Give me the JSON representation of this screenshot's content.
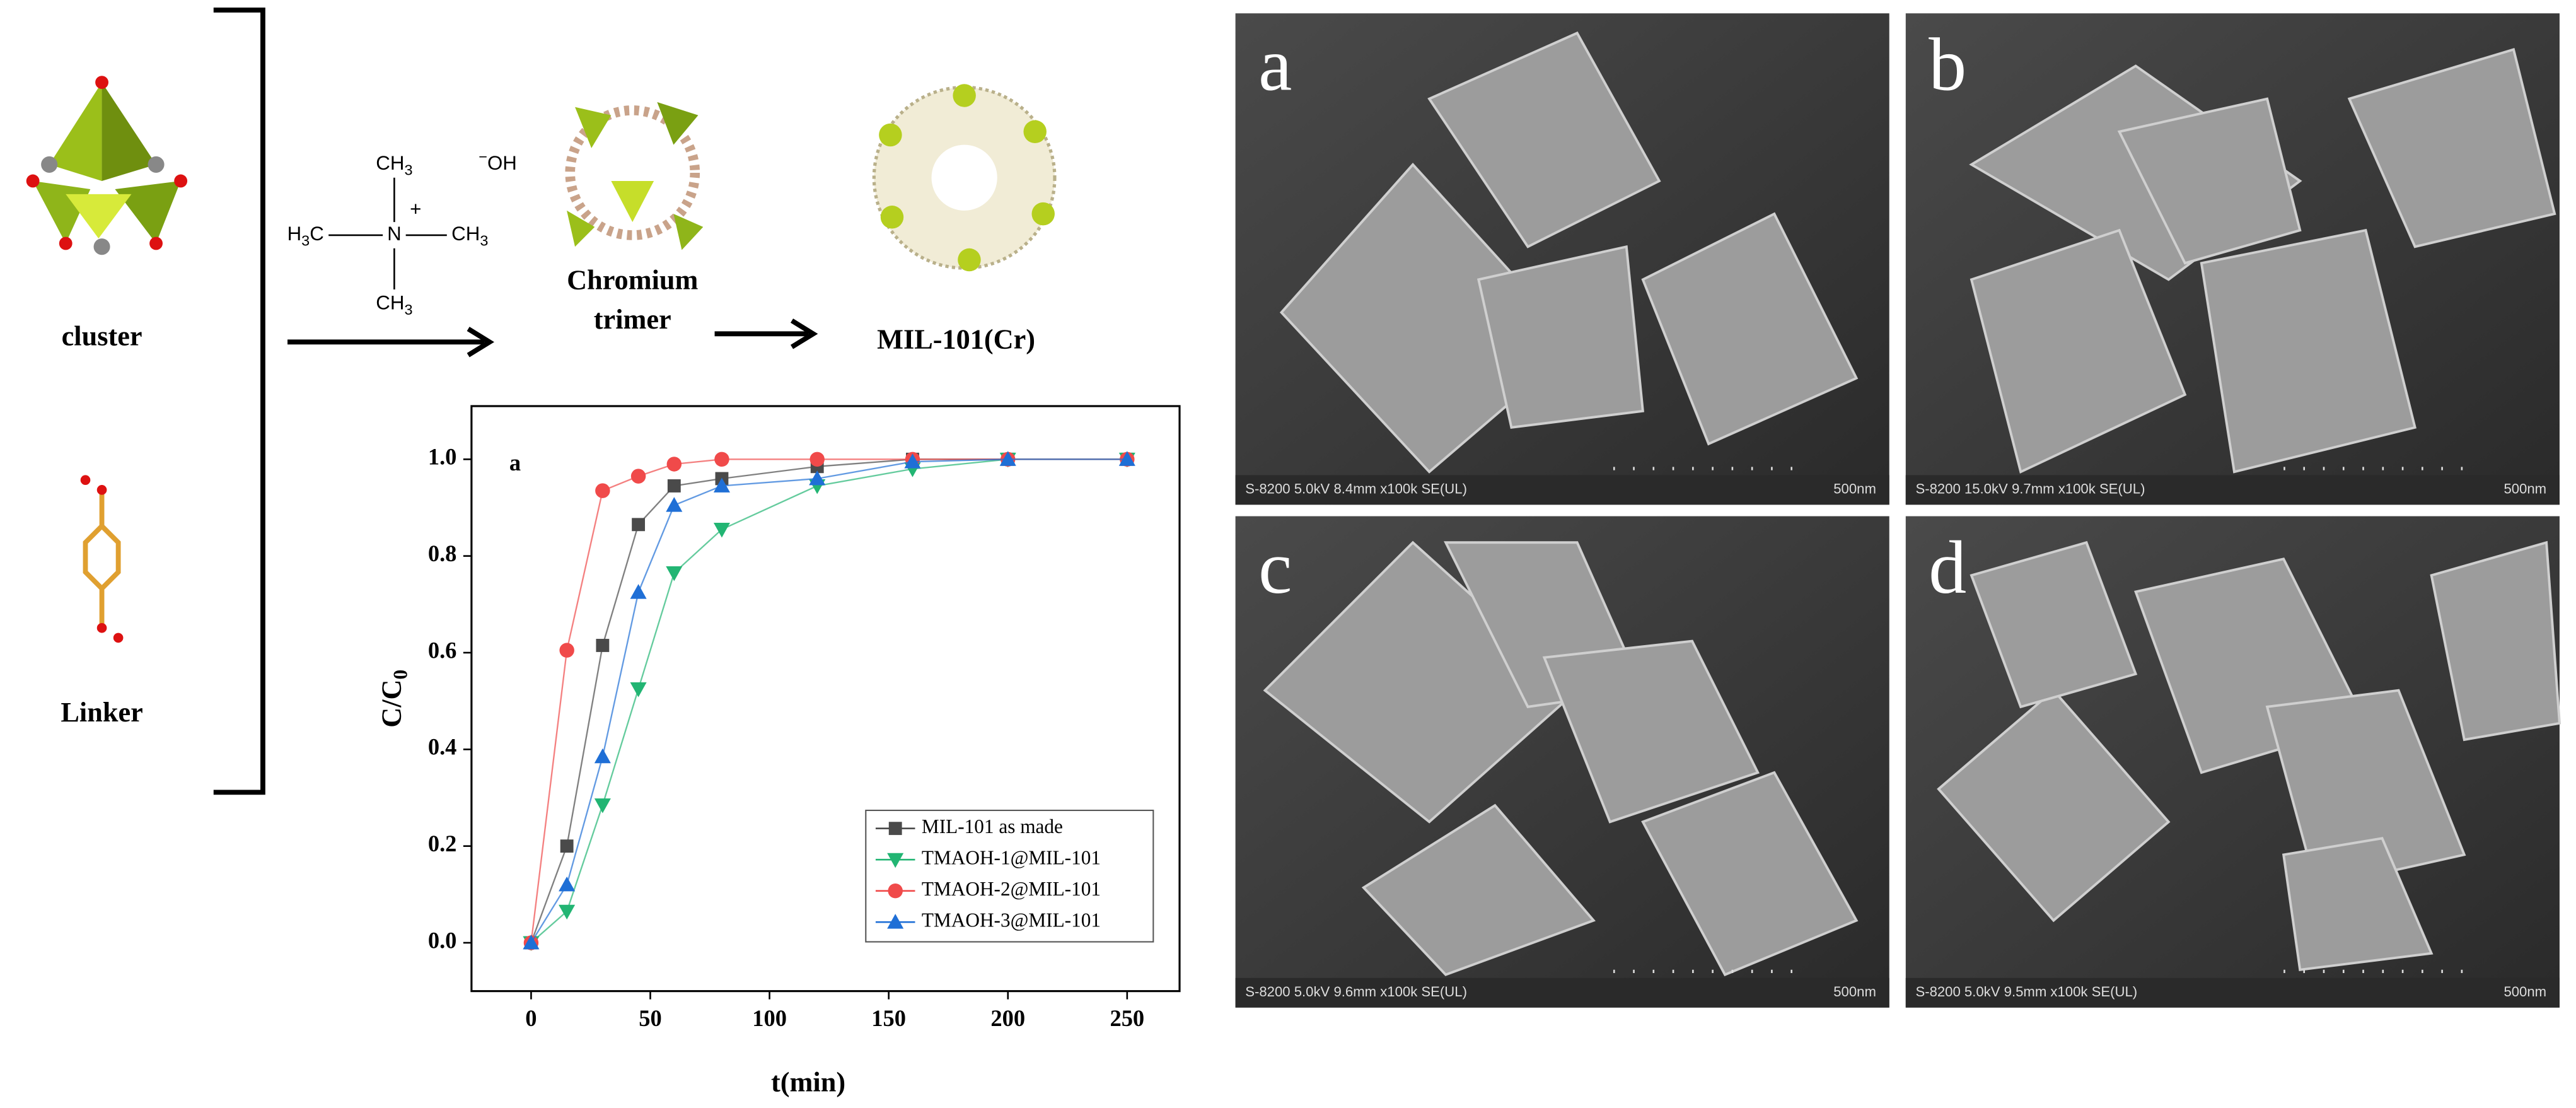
{
  "scheme": {
    "cluster_label": "cluster",
    "linker_label": "Linker",
    "trimer_label": [
      "Chromium",
      "trimer"
    ],
    "product_label": "MIL-101(Cr)",
    "tmaoh": {
      "methyl_top": [
        "CH",
        "3"
      ],
      "methyl_left": [
        "H",
        "3",
        "C"
      ],
      "methyl_right": [
        "CH",
        "3"
      ],
      "methyl_bottom": [
        "CH",
        "3"
      ],
      "nitrogen": "N",
      "charge": "+",
      "anion": [
        "−",
        "OH"
      ]
    }
  },
  "chart_data": {
    "type": "line",
    "panel_label": "a",
    "xlabel": "t(min)",
    "ylabel": [
      "C/C",
      "0"
    ],
    "x": [
      0,
      15,
      30,
      45,
      60,
      80,
      120,
      160,
      200,
      250
    ],
    "series": [
      {
        "name": "MIL-101 as made",
        "color": "#4a4a4a",
        "marker": "square",
        "values": [
          0,
          0.2,
          0.615,
          0.865,
          0.945,
          0.96,
          0.985,
          1.0,
          1.0,
          1.0
        ]
      },
      {
        "name": "TMAOH-1@MIL-101",
        "color": "#22b573",
        "marker": "triangle-down",
        "values": [
          0,
          0.065,
          0.285,
          0.525,
          0.765,
          0.855,
          0.945,
          0.98,
          1.0,
          1.0
        ]
      },
      {
        "name": "TMAOH-2@MIL-101",
        "color": "#f04a4a",
        "marker": "circle",
        "values": [
          0,
          0.605,
          0.935,
          0.965,
          0.99,
          1.0,
          1.0,
          1.0,
          1.0,
          1.0
        ]
      },
      {
        "name": "TMAOH-3@MIL-101",
        "color": "#1f6fd6",
        "marker": "triangle-up",
        "values": [
          0,
          0.12,
          0.385,
          0.725,
          0.905,
          0.945,
          0.96,
          0.995,
          1.0,
          1.0
        ]
      }
    ],
    "xlim": [
      -25,
      272
    ],
    "ylim": [
      -0.1,
      1.11
    ],
    "xticks": [
      0,
      50,
      100,
      150,
      200,
      250
    ],
    "yticks": [
      {
        "value": 0,
        "label": "0.0"
      },
      {
        "value": 0.2,
        "label": "0.2"
      },
      {
        "value": 0.4,
        "label": "0.4"
      },
      {
        "value": 0.6,
        "label": "0.6"
      },
      {
        "value": 0.8,
        "label": "0.8"
      },
      {
        "value": 1,
        "label": "1.0"
      }
    ],
    "legend": "lower right"
  },
  "sem": [
    {
      "label": "a",
      "caption": "S-8200 5.0kV 8.4mm x100k SE(UL)",
      "scale": "500nm"
    },
    {
      "label": "b",
      "caption": "S-8200 15.0kV 9.7mm x100k SE(UL)",
      "scale": "500nm"
    },
    {
      "label": "c",
      "caption": "S-8200 5.0kV 9.6mm x100k SE(UL)",
      "scale": "500nm"
    },
    {
      "label": "d",
      "caption": "S-8200 5.0kV 9.5mm x100k SE(UL)",
      "scale": "500nm"
    }
  ]
}
